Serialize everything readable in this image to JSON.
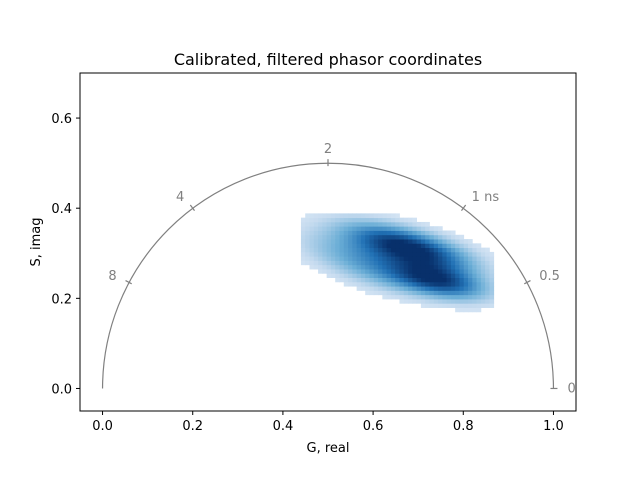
{
  "chart_data": {
    "type": "heatmap",
    "title": "Calibrated, filtered phasor coordinates",
    "xlabel": "G, real",
    "ylabel": "S, imag",
    "xlim": [
      -0.05,
      1.05
    ],
    "ylim": [
      -0.05,
      0.7
    ],
    "xticks": [
      0.0,
      0.2,
      0.4,
      0.6,
      0.8,
      1.0
    ],
    "xtick_labels": [
      "0.0",
      "0.2",
      "0.4",
      "0.6",
      "0.8",
      "1.0"
    ],
    "yticks": [
      0.0,
      0.2,
      0.4,
      0.6
    ],
    "ytick_labels": [
      "0.0",
      "0.2",
      "0.4",
      "0.6"
    ],
    "colormap": "Blues",
    "semicircle": {
      "center": [
        0.5,
        0.0
      ],
      "radius": 0.5,
      "color": "#808080",
      "lifetime_labels": [
        {
          "text": "0",
          "g": 1.0,
          "s": 0.0
        },
        {
          "text": "0.5",
          "g": 0.9412,
          "s": 0.2353
        },
        {
          "text": "1 ns",
          "g": 0.8,
          "s": 0.4
        },
        {
          "text": "2",
          "g": 0.5,
          "s": 0.5
        },
        {
          "text": "4",
          "g": 0.2,
          "s": 0.4
        },
        {
          "text": "8",
          "g": 0.0588,
          "s": 0.2353
        }
      ]
    },
    "clusters": [
      {
        "g": 0.675,
        "s": 0.31,
        "spread_g": 0.095,
        "spread_s": 0.028,
        "tilt": -0.25,
        "peak": 1.0
      },
      {
        "g": 0.74,
        "s": 0.235,
        "spread_g": 0.075,
        "spread_s": 0.025,
        "tilt": -0.2,
        "peak": 0.82
      },
      {
        "g": 0.58,
        "s": 0.275,
        "spread_g": 0.1,
        "spread_s": 0.035,
        "tilt": -0.3,
        "peak": 0.45
      }
    ]
  }
}
